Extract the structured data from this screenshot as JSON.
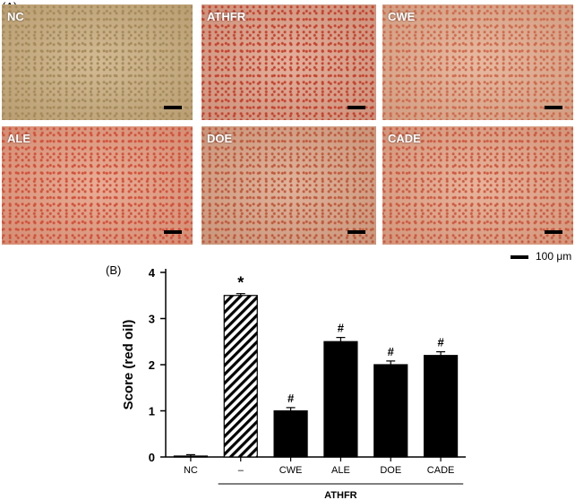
{
  "figure": {
    "panel_a_label": "(A)",
    "panel_b_label": "(B)",
    "scale_legend": "100 μm"
  },
  "micrographs": [
    {
      "label": "NC",
      "base": "#c9ab7c",
      "stain": "#a58a5a"
    },
    {
      "label": "ATHFR",
      "base": "#dd9e86",
      "stain": "#c4432e"
    },
    {
      "label": "CWE",
      "base": "#e2aa8c",
      "stain": "#cf6a4c"
    },
    {
      "label": "ALE",
      "base": "#e49a7e",
      "stain": "#d2513a"
    },
    {
      "label": "DOE",
      "base": "#d9a285",
      "stain": "#bf5a3c"
    },
    {
      "label": "CADE",
      "base": "#e3a386",
      "stain": "#cc5a40"
    }
  ],
  "chart_data": {
    "type": "bar",
    "categories": [
      "NC",
      "–",
      "CWE",
      "ALE",
      "DOE",
      "CADE"
    ],
    "values": [
      0.02,
      3.5,
      1.0,
      2.5,
      2.0,
      2.2
    ],
    "errors": [
      0.03,
      0.04,
      0.07,
      0.09,
      0.08,
      0.08
    ],
    "significance": [
      "",
      "*",
      "#",
      "#",
      "#",
      "#"
    ],
    "fills": [
      "solid",
      "hatched",
      "solid",
      "solid",
      "solid",
      "solid"
    ],
    "ylabel": "Score (red oil)",
    "ylim": [
      0,
      4
    ],
    "yticks": [
      0,
      1,
      2,
      3,
      4
    ],
    "group_label": "ATHFR",
    "group_categories": [
      "–",
      "CWE",
      "ALE",
      "DOE",
      "CADE"
    ],
    "grid": false,
    "bar_color": "#000000"
  }
}
